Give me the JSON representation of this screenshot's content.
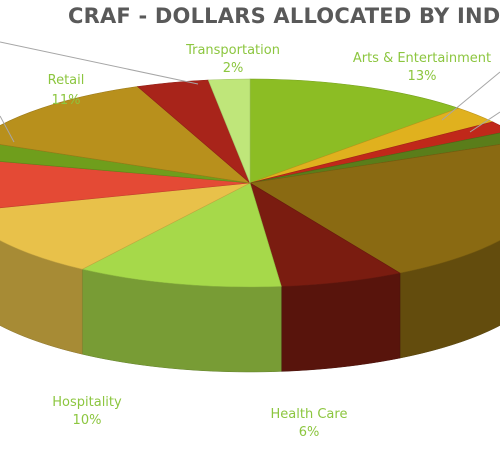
{
  "chart_data": {
    "type": "pie",
    "style": "3d",
    "title": "CRAF - DOLLARS ALLOCATED BY INDUSTRY",
    "label_color": "#8cc63f",
    "slices": [
      {
        "name": "",
        "label": "",
        "value": 11.0,
        "color": "#8cbd24",
        "visible_label": false
      },
      {
        "name": "",
        "label": "",
        "value": 2.5,
        "color": "#e0b11e",
        "visible_label": false
      },
      {
        "name": "",
        "label": "",
        "value": 1.5,
        "color": "#c0281a",
        "visible_label": false
      },
      {
        "name": "",
        "label": "",
        "value": 1.5,
        "color": "#5a7d1a",
        "visible_label": false
      },
      {
        "name": "",
        "label": "",
        "value": 21.0,
        "color": "#8a6a12",
        "visible_label": false
      },
      {
        "name": "Health Care",
        "label": "6%",
        "value": 6,
        "color": "#7a1c10",
        "visible_label": true
      },
      {
        "name": "Hospitality",
        "label": "10%",
        "value": 10,
        "color": "#a6d94a",
        "visible_label": true
      },
      {
        "name": "",
        "label": "",
        "value": 10.0,
        "color": "#e8c14a",
        "visible_label": false
      },
      {
        "name": "",
        "label": "",
        "value": 7.5,
        "color": "#e44a35",
        "visible_label": false
      },
      {
        "name": "",
        "label": "",
        "value": 2.5,
        "color": "#6f9e1c",
        "visible_label": false
      },
      {
        "name": "Retail",
        "label": "11%",
        "value": 11,
        "color": "#b8901c",
        "visible_label": true
      },
      {
        "name": "",
        "label": "",
        "value": 3.5,
        "color": "#a8241a",
        "visible_label": false
      },
      {
        "name": "Transportation",
        "label": "2%",
        "value": 2,
        "color": "#bfe67a",
        "visible_label": true
      }
    ],
    "callouts": [
      {
        "name": "Arts & Entertainment",
        "label": "13%"
      }
    ]
  }
}
